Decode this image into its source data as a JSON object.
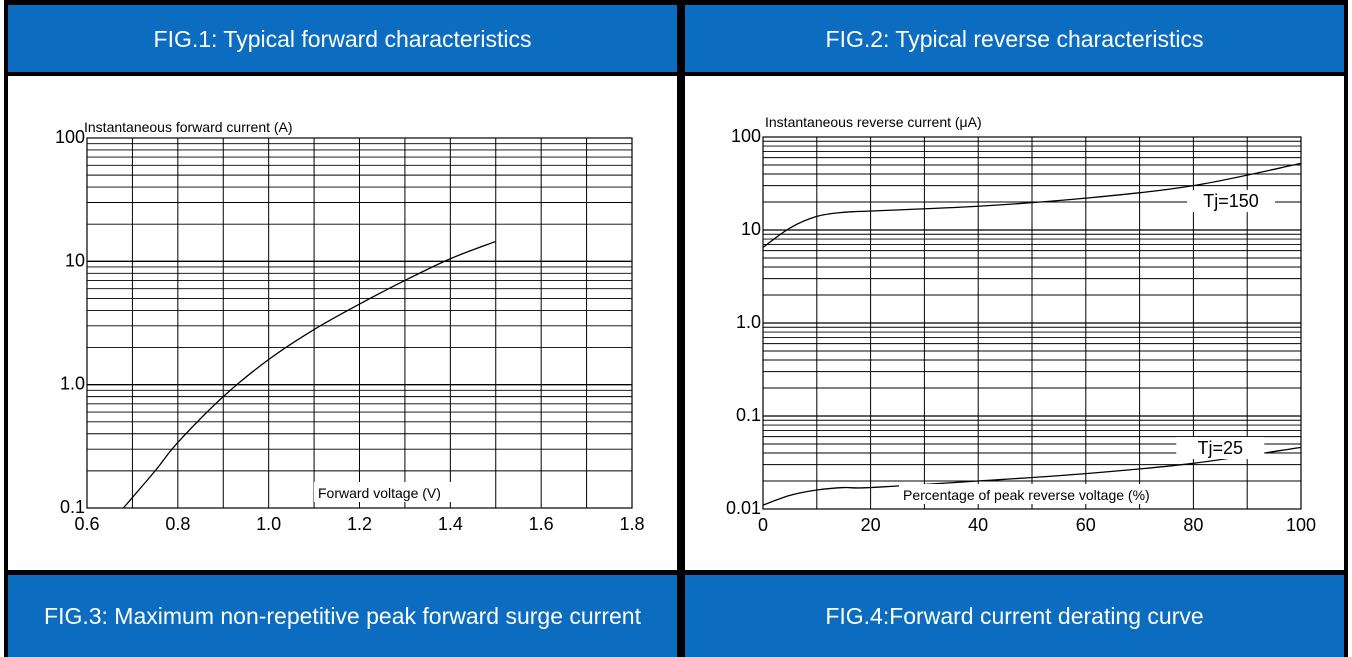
{
  "headers": {
    "fig1": "FIG.1: Typical forward characteristics",
    "fig2": "FIG.2: Typical reverse characteristics",
    "fig3": "FIG.3: Maximum non-repetitive peak forward surge current",
    "fig4": "FIG.4:Forward current derating curve"
  },
  "colors": {
    "header_bg": "#0b6cc0",
    "header_text": "#ffffff",
    "grid": "#000000"
  },
  "chart_data": [
    {
      "type": "line",
      "ylabel": "Instantaneous forward current (A)",
      "xlabel": "Forward voltage (V)",
      "xlim": [
        0.6,
        1.8
      ],
      "ylim": [
        0.1,
        100
      ],
      "yscale": "log",
      "grid": true,
      "xticks": [
        0.6,
        0.8,
        1.0,
        1.2,
        1.4,
        1.6,
        1.8
      ],
      "xtick_labels": [
        "0.6",
        "0.8",
        "1.0",
        "1.2",
        "1.4",
        "1.6",
        "1.8"
      ],
      "yticks": [
        0.1,
        1.0,
        10,
        100
      ],
      "ytick_labels": [
        "0.1",
        "1.0",
        "10",
        "100"
      ],
      "series": [
        {
          "x": [
            0.68,
            0.75,
            0.8,
            0.9,
            1.0,
            1.1,
            1.2,
            1.3,
            1.4,
            1.5
          ],
          "y": [
            0.1,
            0.2,
            0.34,
            0.8,
            1.6,
            2.8,
            4.5,
            7.0,
            10.5,
            14.5
          ]
        }
      ]
    },
    {
      "type": "line",
      "ylabel": "Instantaneous reverse current (μA)",
      "xlabel": "Percentage of peak reverse voltage (%)",
      "xlim": [
        0,
        100
      ],
      "ylim": [
        0.01,
        100
      ],
      "yscale": "log",
      "grid": true,
      "xticks": [
        0,
        20,
        40,
        60,
        80,
        100
      ],
      "xtick_labels": [
        "0",
        "20",
        "40",
        "60",
        "80",
        "100"
      ],
      "yticks": [
        0.01,
        0.1,
        1.0,
        10,
        100
      ],
      "ytick_labels": [
        "0.01",
        "0.1",
        "1.0",
        "10",
        "100"
      ],
      "series": [
        {
          "name": "Tj=150",
          "x": [
            0,
            5,
            10,
            15,
            20,
            40,
            60,
            80,
            100
          ],
          "y": [
            6.5,
            10.5,
            14,
            15.5,
            16,
            18,
            22,
            30,
            52
          ]
        },
        {
          "name": "Tj=25",
          "x": [
            0,
            5,
            10,
            15,
            20,
            40,
            60,
            80,
            100
          ],
          "y": [
            0.011,
            0.014,
            0.016,
            0.017,
            0.017,
            0.02,
            0.024,
            0.031,
            0.046
          ]
        }
      ]
    }
  ]
}
